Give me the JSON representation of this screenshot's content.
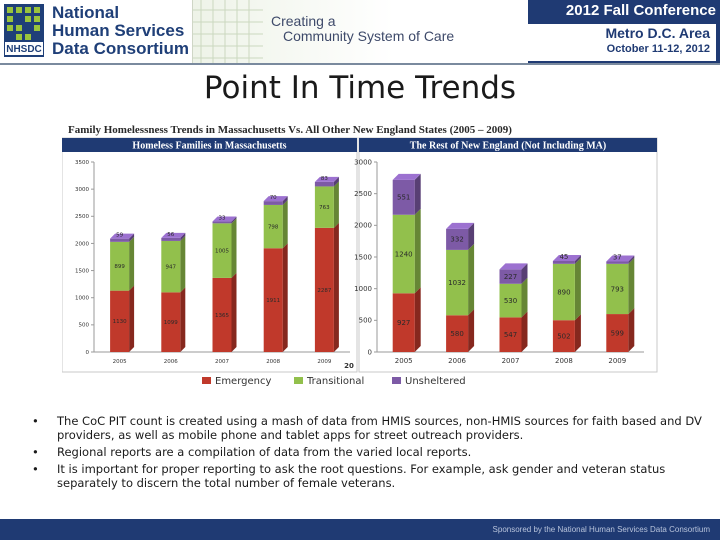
{
  "banner": {
    "org_lines": [
      "National",
      "Human Services",
      "Data Consortium"
    ],
    "logo_mark": "NHSDC",
    "tagline_lines": [
      "Creating a",
      "Community System of Care"
    ],
    "conference": "2012 Fall Conference",
    "location": "Metro D.C. Area",
    "dates": "October 11-12, 2012"
  },
  "slide": {
    "title": "Point In Time Trends",
    "page_number": "20"
  },
  "chart_heading": "Family Homelessness Trends in Massachusetts Vs. All Other New England States (2005 – 2009)",
  "chart_data": [
    {
      "type": "bar",
      "stacked": true,
      "title": "Homeless Families in Massachusetts",
      "categories": [
        "2005",
        "2006",
        "2007",
        "2008",
        "2009"
      ],
      "yticks": [
        "0",
        "500",
        "1000",
        "1500",
        "2000",
        "2500",
        "3000",
        "3500"
      ],
      "ylim": [
        0,
        3500
      ],
      "series": [
        {
          "name": "Emergency",
          "color": "#c0392b",
          "values": [
            1130,
            1099,
            1365,
            1911,
            2287
          ],
          "labels": [
            "1130",
            "1099",
            "1365",
            "1911",
            "2287"
          ]
        },
        {
          "name": "Transitional",
          "color": "#92c04c",
          "values": [
            899,
            947,
            1005,
            798,
            763
          ],
          "labels": [
            "899",
            "947",
            "1005",
            "798",
            "763"
          ]
        },
        {
          "name": "Unsheltered",
          "color": "#7d5aa6",
          "values": [
            59,
            56,
            33,
            70,
            83
          ],
          "labels": [
            "59",
            "56",
            "33",
            "70",
            "83"
          ]
        }
      ]
    },
    {
      "type": "bar",
      "stacked": true,
      "title": "The Rest of New England (Not Including MA)",
      "categories": [
        "2005",
        "2006",
        "2007",
        "2008",
        "2009"
      ],
      "yticks": [
        "0",
        "500",
        "1000",
        "1500",
        "2000",
        "2500",
        "3000"
      ],
      "ylim": [
        0,
        3000
      ],
      "series": [
        {
          "name": "Emergency",
          "color": "#c0392b",
          "values": [
            927,
            580,
            547,
            502,
            599
          ],
          "labels": [
            "927",
            "580",
            "547",
            "502",
            "599"
          ]
        },
        {
          "name": "Transitional",
          "color": "#92c04c",
          "values": [
            1240,
            1032,
            530,
            890,
            793
          ],
          "labels": [
            "1240",
            "1032",
            "530",
            "890",
            "793"
          ]
        },
        {
          "name": "Unsheltered",
          "color": "#7d5aa6",
          "values": [
            551,
            332,
            227,
            45,
            37
          ],
          "labels": [
            "551",
            "332",
            "227",
            "45",
            "37"
          ]
        }
      ]
    }
  ],
  "legend": [
    {
      "name": "Emergency",
      "color": "#c0392b"
    },
    {
      "name": "Transitional",
      "color": "#92c04c"
    },
    {
      "name": "Unsheltered",
      "color": "#7d5aa6"
    }
  ],
  "bullets": [
    "The CoC PIT count is created using a mash of data from HMIS sources, non-HMIS sources for faith based and DV providers, as well as mobile phone and tablet apps for street outreach providers.",
    "Regional reports are a compilation of data from the varied local reports.",
    "It is important for proper reporting to ask the root questions.  For example, ask gender and veteran status separately to discern the total number of female veterans."
  ],
  "bullet_glyph": "•",
  "footer": {
    "text": "Sponsored by the National Human Services Data Consortium"
  }
}
